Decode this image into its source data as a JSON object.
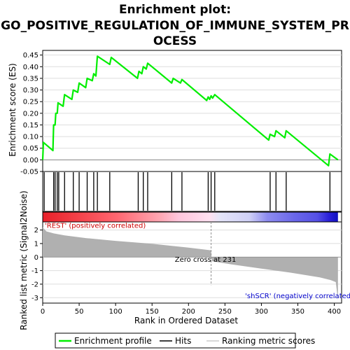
{
  "chart_data": {
    "type": "line",
    "title_lines": [
      "Enrichment plot:",
      "GO_POSITIVE_REGULATION_OF_IMMUNE_SYSTEM_PR",
      "OCESS"
    ],
    "xlabel": "Rank in Ordered Dataset",
    "ylabel_top": "Enrichment score (ES)",
    "ylabel_bottom": "Ranked list metric (Signal2Noise)",
    "xlim": [
      0,
      410
    ],
    "es_ylim": [
      -0.05,
      0.47
    ],
    "metric_ylim": [
      -3.4,
      2.6
    ],
    "x_ticks": [
      "0",
      "50",
      "100",
      "150",
      "200",
      "250",
      "300",
      "350",
      "400"
    ],
    "es_ticks": [
      "-0.05",
      "0.00",
      "0.05",
      "0.10",
      "0.15",
      "0.20",
      "0.25",
      "0.30",
      "0.35",
      "0.40",
      "0.45"
    ],
    "metric_ticks": [
      "-3",
      "-2",
      "-1",
      "0",
      "1",
      "2"
    ],
    "es_color": "#00ee00",
    "es_points": [
      [
        0,
        0.0
      ],
      [
        1,
        0.075
      ],
      [
        14,
        0.04
      ],
      [
        15,
        0.15
      ],
      [
        17,
        0.15
      ],
      [
        18,
        0.2
      ],
      [
        20,
        0.2
      ],
      [
        21,
        0.245
      ],
      [
        28,
        0.23
      ],
      [
        30,
        0.28
      ],
      [
        40,
        0.26
      ],
      [
        42,
        0.3
      ],
      [
        48,
        0.29
      ],
      [
        50,
        0.33
      ],
      [
        59,
        0.31
      ],
      [
        61,
        0.35
      ],
      [
        68,
        0.34
      ],
      [
        70,
        0.37
      ],
      [
        73,
        0.36
      ],
      [
        75,
        0.445
      ],
      [
        92,
        0.41
      ],
      [
        94,
        0.44
      ],
      [
        130,
        0.35
      ],
      [
        132,
        0.38
      ],
      [
        136,
        0.37
      ],
      [
        138,
        0.4
      ],
      [
        142,
        0.39
      ],
      [
        144,
        0.415
      ],
      [
        177,
        0.33
      ],
      [
        179,
        0.35
      ],
      [
        189,
        0.33
      ],
      [
        191,
        0.345
      ],
      [
        225,
        0.255
      ],
      [
        227,
        0.27
      ],
      [
        229,
        0.26
      ],
      [
        231,
        0.275
      ],
      [
        233,
        0.265
      ],
      [
        236,
        0.28
      ],
      [
        310,
        0.085
      ],
      [
        312,
        0.11
      ],
      [
        318,
        0.1
      ],
      [
        320,
        0.125
      ],
      [
        332,
        0.095
      ],
      [
        334,
        0.125
      ],
      [
        392,
        -0.025
      ],
      [
        394,
        0.025
      ],
      [
        405,
        0.0
      ]
    ],
    "hits": [
      2,
      15,
      17,
      20,
      22,
      30,
      42,
      50,
      61,
      70,
      75,
      92,
      131,
      138,
      144,
      177,
      191,
      227,
      231,
      236,
      312,
      320,
      334,
      394
    ],
    "metric_curve": [
      [
        0,
        2.2
      ],
      [
        5,
        1.9
      ],
      [
        15,
        1.75
      ],
      [
        30,
        1.6
      ],
      [
        60,
        1.4
      ],
      [
        100,
        1.2
      ],
      [
        150,
        0.98
      ],
      [
        200,
        0.7
      ],
      [
        231,
        0.5
      ],
      [
        231.5,
        0.0
      ],
      [
        232,
        -0.3
      ],
      [
        260,
        -0.55
      ],
      [
        300,
        -0.85
      ],
      [
        340,
        -1.15
      ],
      [
        380,
        -1.5
      ],
      [
        395,
        -1.7
      ],
      [
        402,
        -1.85
      ],
      [
        405,
        -3.2
      ]
    ],
    "zero_cross": 231,
    "annotations": {
      "positive": "'REST' (positively correlated)",
      "negative": "'shSCR' (negatively correlated)",
      "zero_cross": "Zero cross at 231"
    },
    "legend": {
      "placement": "bottom",
      "items": [
        {
          "label": "Enrichment profile",
          "color": "#00ee00",
          "kind": "line"
        },
        {
          "label": "Hits",
          "color": "#000000",
          "kind": "line"
        },
        {
          "label": "Ranking metric scores",
          "color": "#c0c0c0",
          "kind": "line"
        }
      ]
    },
    "colors": {
      "positive_annotation": "#cc0000",
      "negative_annotation": "#0000cc",
      "metric_fill": "#b0b0b0"
    }
  }
}
